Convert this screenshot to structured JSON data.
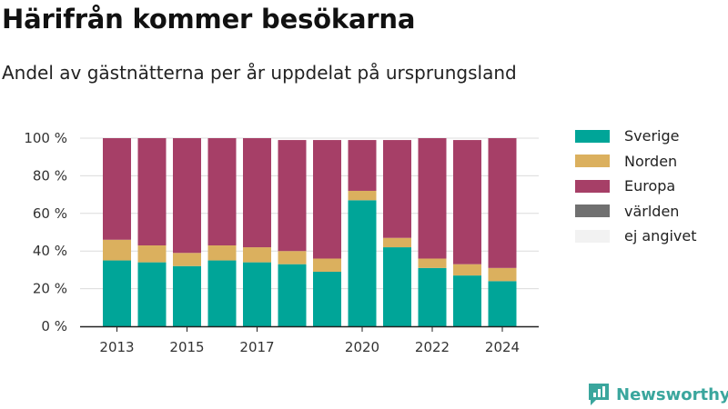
{
  "title": "Härifrån kommer besökarna",
  "subtitle": "Andel av gästnätterna per år uppdelat på ursprungsland",
  "brand": {
    "name": "Newsworthy",
    "icon": "newsworthy-logo-icon"
  },
  "colors": {
    "Sverige": "#00a598",
    "Norden": "#dbb05e",
    "Europa": "#a63f67",
    "världen": "#707070",
    "ej angivet": "#f2f2f2"
  },
  "chart_data": {
    "type": "bar",
    "stacked": true,
    "categories": [
      "2013",
      "2014",
      "2015",
      "2016",
      "2017",
      "2018",
      "2019",
      "2020",
      "2021",
      "2022",
      "2023",
      "2024"
    ],
    "x_tick_labels": [
      "2013",
      "2015",
      "2017",
      "2020",
      "2022",
      "2024"
    ],
    "y_tick_labels": [
      "0 %",
      "20 %",
      "40 %",
      "60 %",
      "80 %",
      "100 %"
    ],
    "ylim": [
      0,
      100
    ],
    "grid": true,
    "legend_position": "right",
    "series": [
      {
        "name": "Sverige",
        "values": [
          35,
          34,
          32,
          35,
          34,
          33,
          29,
          67,
          42,
          31,
          27,
          24
        ]
      },
      {
        "name": "Norden",
        "values": [
          11,
          9,
          7,
          8,
          8,
          7,
          7,
          5,
          5,
          5,
          6,
          7
        ]
      },
      {
        "name": "Europa",
        "values": [
          54,
          57,
          61,
          57,
          58,
          59,
          63,
          27,
          52,
          64,
          66,
          69
        ]
      },
      {
        "name": "världen",
        "values": [
          0,
          0,
          0,
          0,
          0,
          0,
          0,
          0,
          0,
          0,
          0,
          0
        ]
      },
      {
        "name": "ej angivet",
        "values": [
          0,
          0,
          0,
          0,
          0,
          0,
          0,
          0,
          0,
          0,
          0,
          0
        ]
      }
    ]
  }
}
